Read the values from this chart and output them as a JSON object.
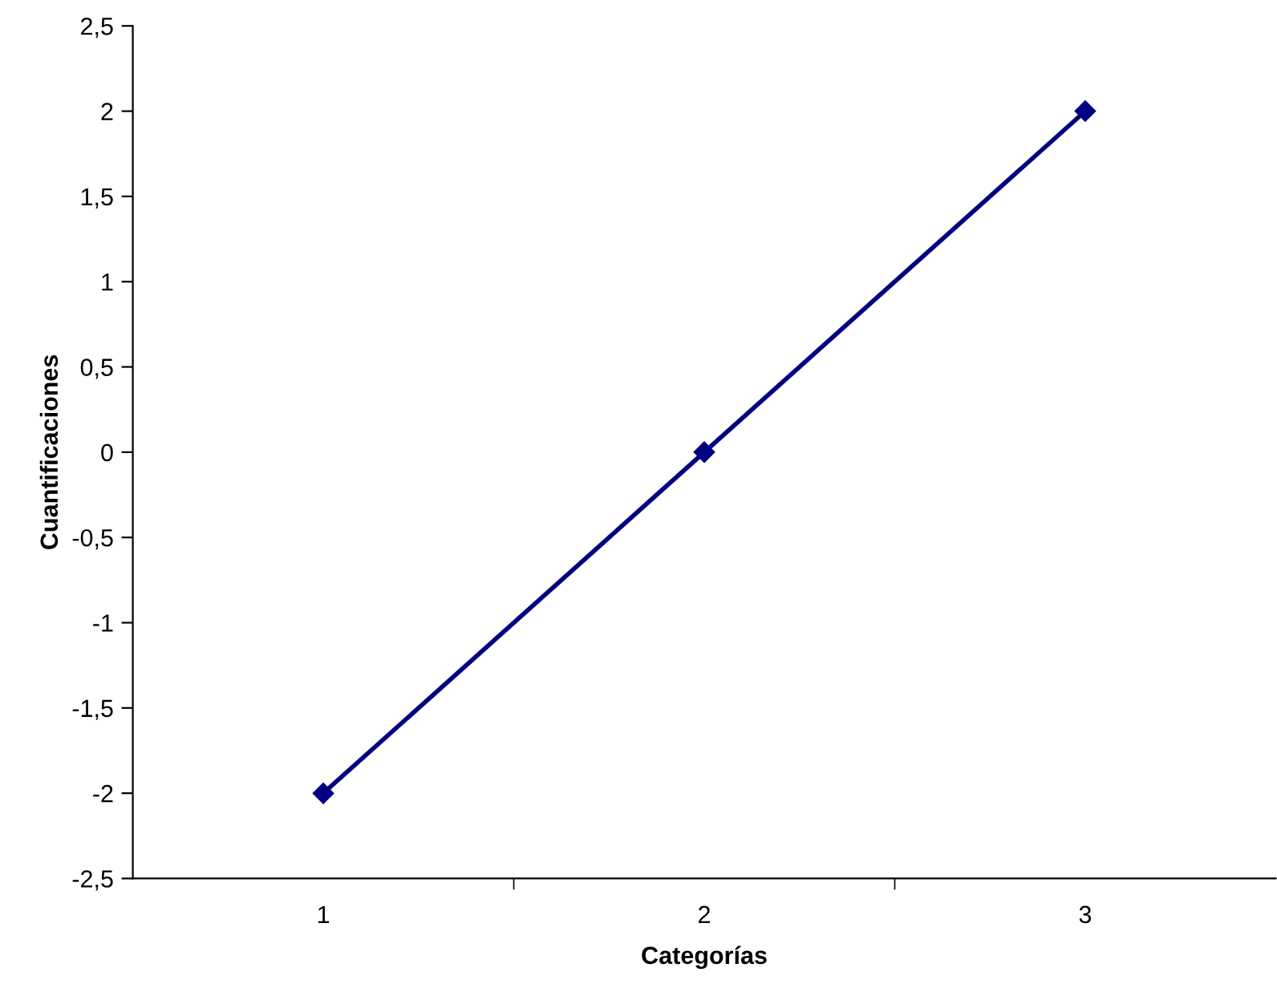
{
  "chart_data": {
    "type": "line",
    "xlabel": "Categorías",
    "ylabel": "Cuantificaciones",
    "categories": [
      "1",
      "2",
      "3"
    ],
    "series": [
      {
        "color": "#000080",
        "values": [
          -2,
          0,
          2
        ]
      }
    ],
    "ylim": [
      -2.5,
      2.5
    ],
    "yticks": [
      {
        "value": -2.5,
        "label": "-2,5"
      },
      {
        "value": -2,
        "label": "-2"
      },
      {
        "value": -1.5,
        "label": "-1,5"
      },
      {
        "value": -1,
        "label": "-1"
      },
      {
        "value": -0.5,
        "label": "-0,5"
      },
      0,
      {
        "value": 0.5,
        "label": "0,5"
      },
      1,
      {
        "value": 1.5,
        "label": "1,5"
      },
      2,
      {
        "value": 2.5,
        "label": "2,5"
      }
    ],
    "marker": "diamond",
    "line_style": "solid",
    "grid": false,
    "legend": false
  }
}
